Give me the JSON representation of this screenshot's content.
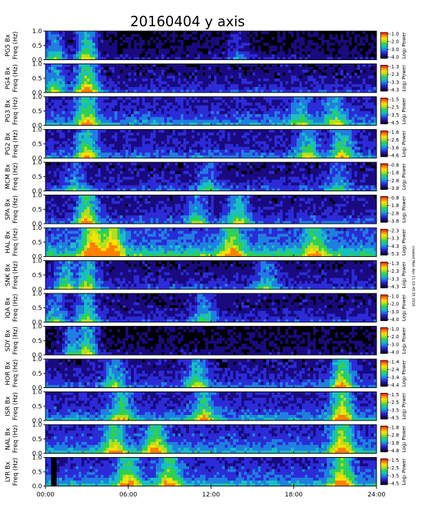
{
  "chart_data": {
    "type": "heatmap",
    "title": "20160404 y axis",
    "side_note": "created Mon Apr 11 10:45:35 2016",
    "xlim": [
      0,
      24
    ],
    "x_ticks": [
      "00:00",
      "06:00",
      "12:00",
      "18:00",
      "24:00"
    ],
    "ylim": [
      0,
      1.0
    ],
    "y_ticks": [
      "0.0",
      "0.5",
      "1.0"
    ],
    "colorbar_label": "Log₂ Power",
    "colormap": [
      "#000000",
      "#1a0a80",
      "#2b2bd8",
      "#1f7fe0",
      "#18c0c0",
      "#30d050",
      "#b0e020",
      "#ffe000",
      "#ff8000",
      "#ff0000"
    ],
    "panels": [
      {
        "ylabel_top": "PG5 Bx",
        "ylabel": "Freq (Hz)",
        "cb_ticks": [
          "-1.0",
          "-2.0",
          "-3.0",
          "-4.0"
        ],
        "intensity": 0.18,
        "events": [
          [
            3.0,
            0.7
          ],
          [
            0.7,
            0.5
          ],
          [
            14.0,
            0.25
          ]
        ]
      },
      {
        "ylabel_top": "PG4 Bx",
        "ylabel": "Freq (Hz)",
        "cb_ticks": [
          "-1.3",
          "-2.3",
          "-3.3",
          "-4.3"
        ],
        "intensity": 0.28,
        "events": [
          [
            3.0,
            0.8
          ],
          [
            0.7,
            0.5
          ]
        ]
      },
      {
        "ylabel_top": "PG3 Bx",
        "ylabel": "Freq (Hz)",
        "cb_ticks": [
          "-1.5",
          "-2.5",
          "-3.5",
          "-4.5"
        ],
        "intensity": 0.4,
        "events": [
          [
            3.0,
            0.6
          ],
          [
            21.0,
            0.4
          ],
          [
            18.5,
            0.35
          ]
        ]
      },
      {
        "ylabel_top": "PG2 Bx",
        "ylabel": "Freq (Hz)",
        "cb_ticks": [
          "-1.6",
          "-2.6",
          "-3.6",
          "-4.6"
        ],
        "intensity": 0.35,
        "events": [
          [
            3.0,
            0.6
          ],
          [
            21.5,
            0.55
          ],
          [
            19.0,
            0.45
          ]
        ]
      },
      {
        "ylabel_top": "MCM Bx",
        "ylabel": "Freq (Hz)",
        "cb_ticks": [
          "-0.8",
          "-1.8",
          "-2.8",
          "-3.8"
        ],
        "intensity": 0.3,
        "events": [
          [
            2.2,
            0.3
          ],
          [
            11.8,
            0.3
          ],
          [
            21.3,
            0.3
          ]
        ]
      },
      {
        "ylabel_top": "SPA Bx",
        "ylabel": "Freq (Hz)",
        "cb_ticks": [
          "-0.8",
          "-1.8",
          "-2.8",
          "-3.8"
        ],
        "intensity": 0.32,
        "events": [
          [
            3.0,
            0.7
          ],
          [
            14.0,
            0.5
          ],
          [
            11.0,
            0.4
          ]
        ]
      },
      {
        "ylabel_top": "HAL Bx",
        "ylabel": "Freq (Hz)",
        "cb_ticks": [
          "-2.3",
          "-3.3",
          "-4.3",
          "-5.3"
        ],
        "intensity": 0.55,
        "events": [
          [
            3.5,
            0.9
          ],
          [
            4.8,
            0.8
          ],
          [
            13.5,
            0.6
          ],
          [
            19.5,
            0.5
          ]
        ]
      },
      {
        "ylabel_top": "SNK Bx",
        "ylabel": "Freq (Hz)",
        "cb_ticks": [
          "-1.3",
          "-2.3",
          "-3.3",
          "-4.3"
        ],
        "intensity": 0.28,
        "events": [
          [
            3.0,
            0.6
          ],
          [
            1.5,
            0.5
          ],
          [
            16.0,
            0.4
          ]
        ]
      },
      {
        "ylabel_top": "IQA Bx",
        "ylabel": "Freq (Hz)",
        "cb_ticks": [
          "-1.0",
          "-2.0",
          "-3.0",
          "-4.0"
        ],
        "intensity": 0.27,
        "events": [
          [
            3.0,
            0.5
          ],
          [
            0.7,
            0.4
          ],
          [
            11.5,
            0.4
          ]
        ]
      },
      {
        "ylabel_top": "SDY Bx",
        "ylabel": "Freq (Hz)",
        "cb_ticks": [
          "-1.0",
          "-2.0",
          "-3.0",
          "-4.0"
        ],
        "intensity": 0.16,
        "events": [
          [
            3.0,
            0.7
          ],
          [
            2.0,
            0.5
          ]
        ]
      },
      {
        "ylabel_top": "HOR Bx",
        "ylabel": "Freq (Hz)",
        "cb_ticks": [
          "-1.4",
          "-2.4",
          "-3.4",
          "-4.4"
        ],
        "intensity": 0.32,
        "events": [
          [
            11.0,
            0.5
          ],
          [
            21.5,
            0.7
          ],
          [
            5.0,
            0.4
          ]
        ]
      },
      {
        "ylabel_top": "ISR Bx",
        "ylabel": "Freq (Hz)",
        "cb_ticks": [
          "-1.5",
          "-2.5",
          "-3.5",
          "-4.5"
        ],
        "intensity": 0.4,
        "events": [
          [
            21.5,
            0.75
          ],
          [
            5.5,
            0.5
          ],
          [
            11.5,
            0.55
          ]
        ]
      },
      {
        "ylabel_top": "NAL Bx",
        "ylabel": "Freq (Hz)",
        "cb_ticks": [
          "-1.8",
          "-2.8",
          "-3.8",
          "-4.8"
        ],
        "intensity": 0.45,
        "events": [
          [
            5.0,
            0.6
          ],
          [
            8.0,
            0.6
          ],
          [
            21.5,
            0.7
          ]
        ]
      },
      {
        "ylabel_top": "LYR Bx",
        "ylabel": "Freq (Hz)",
        "cb_ticks": [
          "-1.5",
          "-2.5",
          "-3.5",
          "-4.5"
        ],
        "intensity": 0.45,
        "events": [
          [
            6.0,
            0.6
          ],
          [
            9.0,
            0.6
          ],
          [
            21.5,
            0.7
          ]
        ],
        "gap": [
          0.5,
          0.75
        ]
      }
    ]
  }
}
